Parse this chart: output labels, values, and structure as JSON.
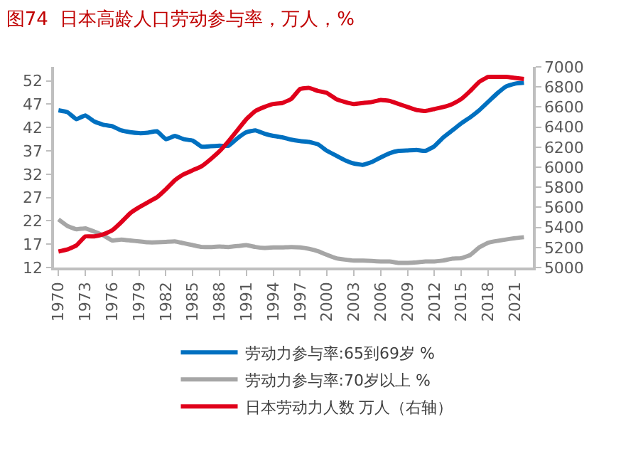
{
  "chart_data": {
    "type": "line",
    "title": "图74  日本高龄人口劳动参与率，万人，%",
    "x": [
      1970,
      1971,
      1972,
      1973,
      1974,
      1975,
      1976,
      1977,
      1978,
      1979,
      1980,
      1981,
      1982,
      1983,
      1984,
      1985,
      1986,
      1987,
      1988,
      1989,
      1990,
      1991,
      1992,
      1993,
      1994,
      1995,
      1996,
      1997,
      1998,
      1999,
      2000,
      2001,
      2002,
      2003,
      2004,
      2005,
      2006,
      2007,
      2008,
      2009,
      2010,
      2011,
      2012,
      2013,
      2014,
      2015,
      2016,
      2017,
      2018,
      2019,
      2020,
      2021,
      2022
    ],
    "series": [
      {
        "name": "劳动力参与率:65到69岁 %",
        "color": "#0070c0",
        "values": [
          45.7,
          45.3,
          43.8,
          44.6,
          43.3,
          42.6,
          42.3,
          41.4,
          41.0,
          40.8,
          40.9,
          41.2,
          39.5,
          40.2,
          39.5,
          39.2,
          37.9,
          38.0,
          38.1,
          38.1,
          39.7,
          41.0,
          41.4,
          40.7,
          40.2,
          39.9,
          39.4,
          39.1,
          38.9,
          38.4,
          37.0,
          36.0,
          35.0,
          34.3,
          34.0,
          34.6,
          35.6,
          36.5,
          37.0,
          37.1,
          37.2,
          37.0,
          38.0,
          39.9,
          41.4,
          42.9,
          44.2,
          45.7,
          47.5,
          49.3,
          50.8,
          51.4,
          51.6
        ]
      },
      {
        "name": "劳动力参与率:70岁以上 %",
        "color": "#a6a6a6",
        "values": [
          22.3,
          20.9,
          20.2,
          20.4,
          19.7,
          18.9,
          17.8,
          18.0,
          17.8,
          17.6,
          17.4,
          17.4,
          17.5,
          17.6,
          17.2,
          16.8,
          16.4,
          16.4,
          16.5,
          16.4,
          16.6,
          16.8,
          16.4,
          16.2,
          16.3,
          16.3,
          16.4,
          16.3,
          16.0,
          15.5,
          14.7,
          14.0,
          13.7,
          13.5,
          13.5,
          13.4,
          13.3,
          13.3,
          13.0,
          13.0,
          13.1,
          13.3,
          13.3,
          13.5,
          13.9,
          14.0,
          14.7,
          16.3,
          17.3,
          17.7,
          18.0,
          18.3,
          18.5
        ]
      },
      {
        "name": "日本劳动力人数 万人（右轴）",
        "color": "#e0001b",
        "axis": "y2",
        "values": [
          5160,
          5180,
          5220,
          5310,
          5310,
          5330,
          5370,
          5450,
          5540,
          5600,
          5650,
          5700,
          5780,
          5870,
          5930,
          5970,
          6010,
          6080,
          6160,
          6260,
          6370,
          6480,
          6560,
          6600,
          6630,
          6640,
          6680,
          6780,
          6790,
          6760,
          6740,
          6680,
          6650,
          6630,
          6640,
          6650,
          6670,
          6660,
          6630,
          6600,
          6570,
          6560,
          6580,
          6600,
          6630,
          6680,
          6760,
          6850,
          6900,
          6900,
          6900,
          6890,
          6880
        ]
      }
    ],
    "xlim": [
      1969.5,
      2023
    ],
    "xticks": [
      1970,
      1973,
      1976,
      1979,
      1982,
      1985,
      1988,
      1991,
      1994,
      1997,
      2000,
      2003,
      2006,
      2009,
      2012,
      2015,
      2018,
      2021
    ],
    "ylim": [
      12,
      55
    ],
    "yticks": [
      12,
      17,
      22,
      27,
      32,
      37,
      42,
      47,
      52
    ],
    "y2lim": [
      5000,
      7000
    ],
    "y2ticks": [
      5000,
      5200,
      5400,
      5600,
      5800,
      6000,
      6200,
      6400,
      6600,
      6800,
      7000
    ],
    "legend": "bottom",
    "marker": "none",
    "line_style": "solid"
  }
}
